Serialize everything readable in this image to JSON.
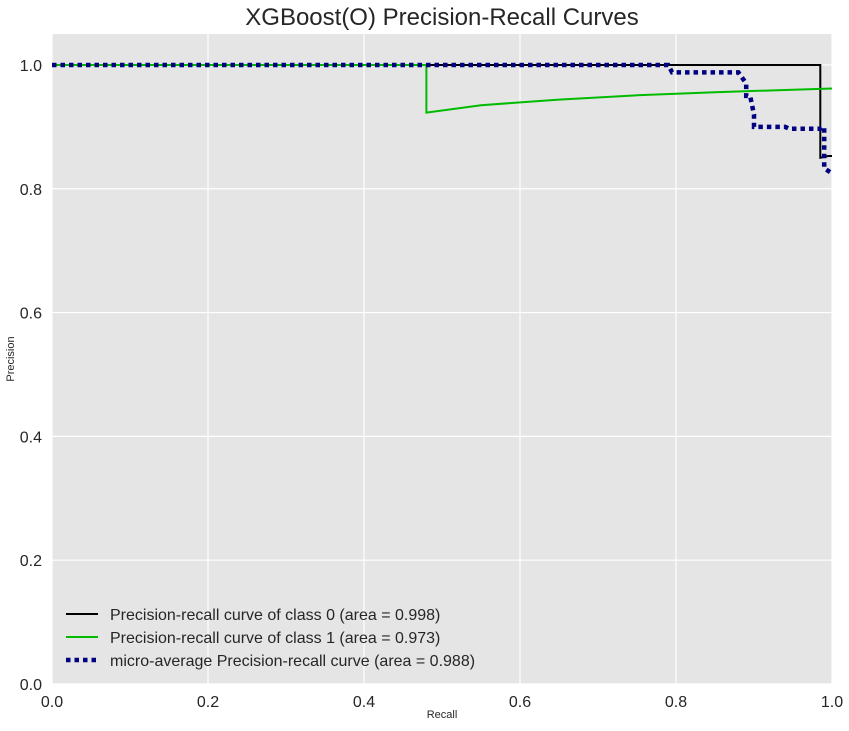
{
  "chart_data": {
    "type": "line",
    "title": "XGBoost(O) Precision-Recall Curves",
    "xlabel": "Recall",
    "ylabel": "Precision",
    "xlim": [
      0.0,
      1.0
    ],
    "ylim": [
      0.0,
      1.05
    ],
    "xticks": [
      0.0,
      0.2,
      0.4,
      0.6,
      0.8,
      1.0
    ],
    "yticks": [
      0.0,
      0.2,
      0.4,
      0.6,
      0.8,
      1.0
    ],
    "xtick_labels": [
      "0.0",
      "0.2",
      "0.4",
      "0.6",
      "0.8",
      "1.0"
    ],
    "ytick_labels": [
      "0.0",
      "0.2",
      "0.4",
      "0.6",
      "0.8",
      "1.0"
    ],
    "grid": true,
    "legend_position": "lower-left",
    "colors": {
      "plot_background": "#e5e5e5",
      "grid": "#ffffff",
      "text": "#262626"
    },
    "series": [
      {
        "name": "Precision-recall curve of class 0 (area = 0.998)",
        "color": "#000000",
        "style": "solid",
        "x": [
          0.0,
          0.985,
          0.985,
          0.995,
          1.0
        ],
        "y": [
          1.0,
          1.0,
          0.85,
          0.853,
          0.853
        ]
      },
      {
        "name": "Precision-recall curve of class 1 (area = 0.973)",
        "color": "#00bb00",
        "style": "solid",
        "x": [
          0.0,
          0.48,
          0.48,
          0.55,
          0.65,
          0.75,
          0.85,
          0.95,
          1.0
        ],
        "y": [
          1.0,
          1.0,
          0.923,
          0.935,
          0.944,
          0.951,
          0.956,
          0.96,
          0.962
        ]
      },
      {
        "name": "micro-average Precision-recall curve (area = 0.988)",
        "color": "#000080",
        "style": "dotted",
        "x": [
          0.0,
          0.79,
          0.795,
          0.88,
          0.89,
          0.89,
          0.895,
          0.9,
          0.9,
          0.94,
          0.945,
          0.985,
          0.99,
          0.99,
          1.0
        ],
        "y": [
          1.0,
          1.0,
          0.988,
          0.988,
          0.97,
          0.95,
          0.95,
          0.92,
          0.9,
          0.9,
          0.897,
          0.897,
          0.9,
          0.833,
          0.825
        ]
      }
    ]
  }
}
